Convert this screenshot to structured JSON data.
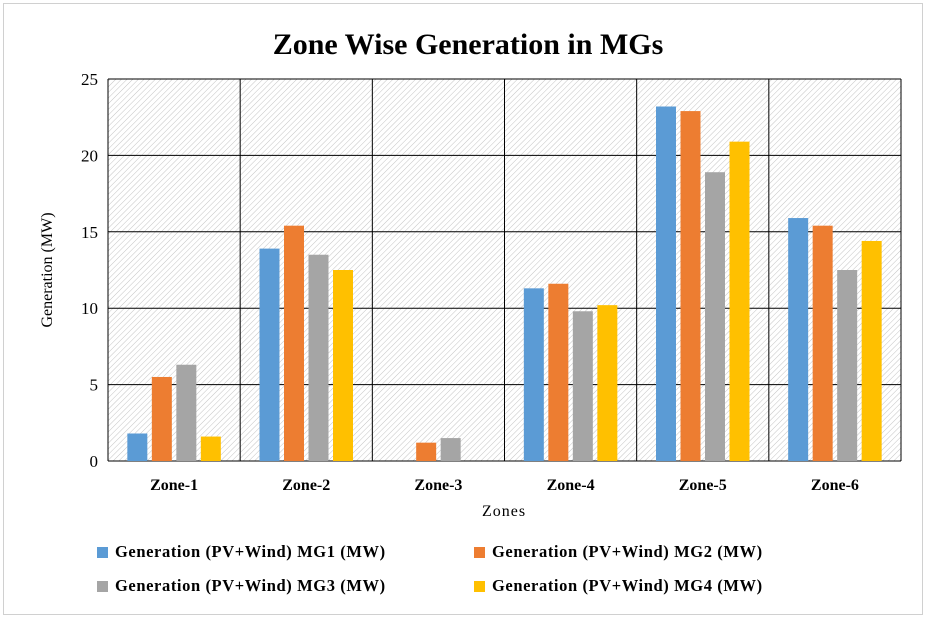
{
  "chart_data": {
    "type": "bar",
    "title": "Zone Wise Generation in MGs",
    "xlabel": "Zones",
    "ylabel": "Generation (MW)",
    "ylim": [
      0,
      25
    ],
    "yticks": [
      0,
      5,
      10,
      15,
      20,
      25
    ],
    "categories": [
      "Zone-1",
      "Zone-2",
      "Zone-3",
      "Zone-4",
      "Zone-5",
      "Zone-6"
    ],
    "series": [
      {
        "name": "Generation (PV+Wind) MG1 (MW)",
        "color": "#5B9BD5",
        "values": [
          1.8,
          13.9,
          0,
          11.3,
          23.2,
          15.9
        ]
      },
      {
        "name": "Generation (PV+Wind) MG2 (MW)",
        "color": "#ED7D31",
        "values": [
          5.5,
          15.4,
          1.2,
          11.6,
          22.9,
          15.4
        ]
      },
      {
        "name": "Generation (PV+Wind) MG3 (MW)",
        "color": "#A5A5A5",
        "values": [
          6.3,
          13.5,
          1.5,
          9.8,
          18.9,
          12.5
        ]
      },
      {
        "name": "Generation (PV+Wind) MG4 (MW)",
        "color": "#FFC000",
        "values": [
          1.6,
          12.5,
          0,
          10.2,
          20.9,
          14.4
        ]
      }
    ],
    "grid": true,
    "legend_position": "bottom"
  }
}
